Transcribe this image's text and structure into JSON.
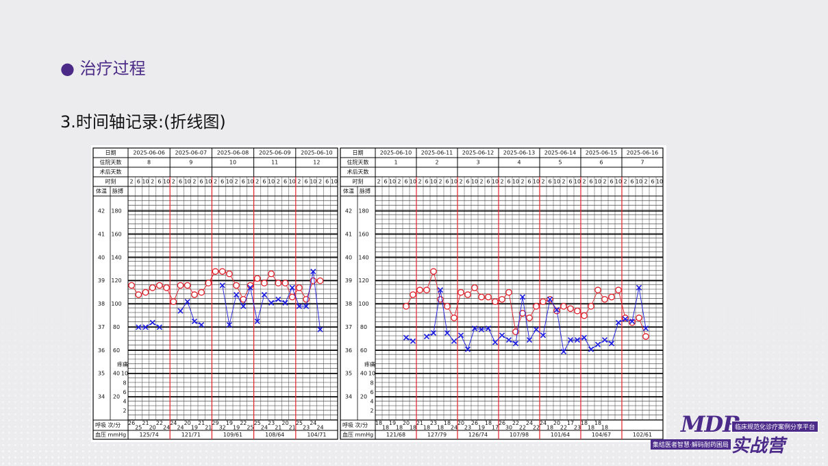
{
  "slide": {
    "bullet_title": "治疗过程",
    "subtitle": "3.时间轴记录:(折线图)"
  },
  "logo": {
    "mark": "MDR",
    "tagline": "临床规范化诊疗案例分享平台",
    "name": "实战营",
    "slogan": "集结医者智慧·解码耐药困局"
  },
  "chart_data": [
    {
      "type": "line",
      "row_labels": {
        "date": "日期",
        "hospital_day": "住院天数",
        "postop_day": "术后天数",
        "time": "时刻",
        "temp": "体温",
        "pulse": "脉搏",
        "resp": "呼吸 次/分",
        "bp": "血压 mmHg"
      },
      "dates": [
        "2025-06-06",
        "2025-06-07",
        "2025-06-08",
        "2025-06-09",
        "2025-06-10"
      ],
      "hospital_days": [
        8,
        9,
        10,
        11,
        12
      ],
      "categories": [
        2,
        6,
        10,
        2,
        6,
        10,
        2,
        6,
        10,
        2,
        6,
        10,
        2,
        6,
        10,
        2,
        6,
        10,
        2,
        6,
        10,
        2,
        6,
        10,
        2,
        6,
        10,
        2,
        6,
        10
      ],
      "ylim": [
        33,
        42.65
      ],
      "yticks": [
        42,
        41,
        40,
        39,
        38,
        37,
        36,
        35,
        34
      ],
      "y2lim": [
        0,
        193
      ],
      "y2ticks": [
        180,
        160,
        140,
        120,
        100,
        80,
        60,
        40,
        20
      ],
      "pain_label": "疼痛",
      "pain_ticks": [
        10,
        8,
        6,
        4,
        2
      ],
      "series": [
        {
          "color": "#e3202a",
          "values": [
            38.8,
            38.4,
            38.5,
            38.7,
            38.8,
            38.7,
            38.1,
            38.8,
            38.8,
            38.4,
            38.5,
            38.9,
            39.4,
            39.4,
            39.3,
            38.8,
            38.2,
            38.8,
            39.1,
            38.9,
            39.3,
            38.9,
            38.9,
            38.3,
            38.7,
            38.2,
            39.0,
            39.0,
            null,
            null
          ]
        },
        {
          "color": "#1c1ce0",
          "axis": "y2",
          "values": [
            null,
            80,
            80,
            84,
            80,
            null,
            null,
            94,
            102,
            85,
            82,
            null,
            null,
            116,
            82,
            108,
            98,
            114,
            85,
            108,
            101,
            104,
            101,
            114,
            98,
            98,
            128,
            78,
            null,
            null
          ]
        }
      ],
      "respiration": [
        26,
        25,
        21,
        20,
        22,
        24,
        24,
        24,
        20,
        19,
        21,
        21,
        29,
        32,
        19,
        19,
        22,
        25,
        25,
        24,
        23,
        21,
        20,
        21,
        25,
        23,
        24,
        24
      ],
      "blood_pressure": [
        "125/74",
        "121/71",
        "109/61",
        "108/64",
        "104/71"
      ]
    },
    {
      "type": "line",
      "row_labels": {
        "date": "日期",
        "hospital_day": "住院天数",
        "postop_day": "术后天数",
        "time": "时刻",
        "temp": "体温",
        "pulse": "脉搏",
        "resp": "呼吸 次/分",
        "bp": "血压 mmHg"
      },
      "dates": [
        "2025-06-10",
        "2025-06-11",
        "2025-06-12",
        "2025-06-13",
        "2025-06-14",
        "2025-06-15",
        "2025-06-16"
      ],
      "hospital_days": [
        1,
        2,
        3,
        4,
        5,
        6,
        7
      ],
      "categories": [
        2,
        6,
        10,
        2,
        6,
        10,
        2,
        6,
        10,
        2,
        6,
        10,
        2,
        6,
        10,
        2,
        6,
        10,
        2,
        6,
        10,
        2,
        6,
        10,
        2,
        6,
        10,
        2,
        6,
        10,
        2,
        6,
        10,
        2,
        6,
        10,
        2,
        6,
        10,
        2,
        6,
        10
      ],
      "ylim": [
        33,
        42.65
      ],
      "yticks": [
        42,
        41,
        40,
        39,
        38,
        37,
        36,
        35,
        34
      ],
      "y2lim": [
        0,
        193
      ],
      "y2ticks": [
        180,
        160,
        140,
        120,
        100,
        80,
        60,
        40,
        20
      ],
      "pain_label": "疼痛",
      "pain_ticks": [
        10,
        8,
        6,
        4,
        2
      ],
      "series": [
        {
          "color": "#e3202a",
          "values": [
            null,
            null,
            null,
            null,
            37.9,
            38.4,
            38.6,
            38.6,
            39.4,
            38.2,
            37.9,
            37.4,
            38.5,
            38.4,
            38.7,
            38.3,
            38.3,
            38.1,
            38.2,
            38.5,
            36.8,
            37.6,
            37.4,
            37.9,
            38.1,
            38.2,
            37.7,
            37.9,
            37.8,
            37.7,
            37.5,
            37.9,
            38.6,
            38.2,
            38.3,
            38.6,
            37.4,
            37.2,
            37.4,
            36.6,
            null,
            null
          ]
        },
        {
          "color": "#1c1ce0",
          "axis": "y2",
          "values": [
            null,
            null,
            null,
            null,
            71,
            68,
            null,
            72,
            75,
            112,
            75,
            68,
            73,
            61,
            79,
            78,
            79,
            67,
            73,
            69,
            66,
            106,
            69,
            78,
            73,
            104,
            95,
            59,
            69,
            69,
            71,
            61,
            65,
            69,
            66,
            84,
            87,
            85,
            114,
            79,
            null,
            null
          ]
        }
      ],
      "respiration": [
        18,
        18,
        19,
        18,
        20,
        18,
        21,
        18,
        23,
        18,
        18,
        24,
        20,
        23,
        26,
        19,
        18,
        17,
        26,
        30,
        22,
        22,
        24,
        22,
        24,
        18,
        20,
        22,
        17,
        23,
        18,
        18,
        18,
        18
      ],
      "blood_pressure": [
        "121/68",
        "127/79",
        "126/74",
        "107/98",
        "101/64",
        "104/67",
        "102/61"
      ]
    }
  ]
}
